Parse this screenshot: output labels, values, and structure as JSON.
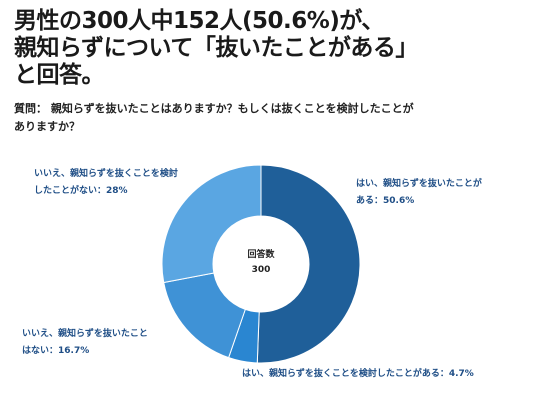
{
  "headline": {
    "line1": "男性の300人中152人(50.6%)が、",
    "line2": "親知らずについて「抜いたことがある」",
    "line3": "と回答。"
  },
  "question": {
    "line1": "質問： 親知らずを抜いたことはありますか？もしくは抜くことを検討したことが",
    "line2": "ありますか？"
  },
  "center": {
    "label": "回答数",
    "value": "300"
  },
  "labels": {
    "yes_extracted": {
      "line1": "はい、親知らずを抜いたことが",
      "line2": "ある：50.6%"
    },
    "yes_considered": "はい、親知らずを抜くことを検討したことがある：4.7%",
    "no_extracted": {
      "line1": "いいえ、親知らずを抜いたこと",
      "line2": "はない：16.7%"
    },
    "no_considered": {
      "line1": "いいえ、親知らずを抜くことを検討",
      "line2": "したことがない：28%"
    }
  },
  "chart_data": {
    "type": "pie",
    "donut": true,
    "total": 300,
    "slices": [
      {
        "name": "はい、親知らずを抜いたことがある",
        "value": 50.6,
        "color": "#1f5f99"
      },
      {
        "name": "はい、親知らずを抜くことを検討したことがある",
        "value": 4.7,
        "color": "#2a86d1"
      },
      {
        "name": "いいえ、親知らずを抜いたことはない",
        "value": 16.7,
        "color": "#3f92d6"
      },
      {
        "name": "いいえ、親知らずを抜くことを検討したことがない",
        "value": 28,
        "color": "#5aa6e2"
      }
    ]
  }
}
